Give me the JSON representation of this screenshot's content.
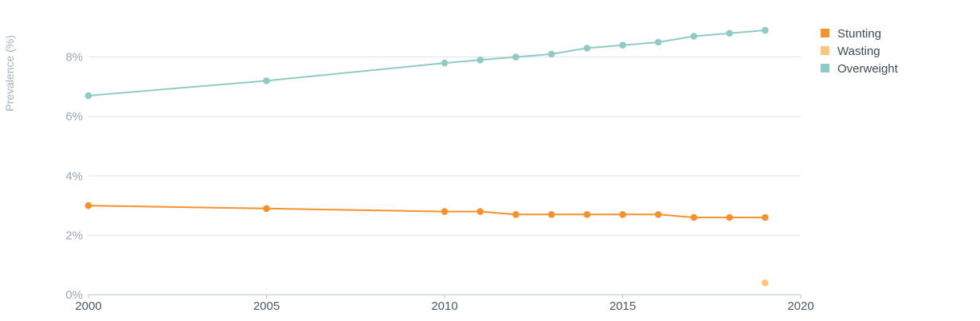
{
  "chart_data": {
    "type": "line",
    "ylabel": "Prevalence (%)",
    "xlim": [
      2000,
      2020
    ],
    "ylim": [
      0,
      9.6
    ],
    "x_ticks": [
      2000,
      2005,
      2010,
      2015,
      2020
    ],
    "y_ticks": [
      {
        "value": 0,
        "label": "0%"
      },
      {
        "value": 2,
        "label": "2%"
      },
      {
        "value": 4,
        "label": "4%"
      },
      {
        "value": 6,
        "label": "6%"
      },
      {
        "value": 8,
        "label": "8%"
      }
    ],
    "grid": true,
    "legend_position": "top-right",
    "series": [
      {
        "name": "Stunting",
        "color": "#f5922d",
        "points": [
          {
            "x": 2000,
            "y": 3.0
          },
          {
            "x": 2005,
            "y": 2.9
          },
          {
            "x": 2010,
            "y": 2.8
          },
          {
            "x": 2011,
            "y": 2.8
          },
          {
            "x": 2012,
            "y": 2.7
          },
          {
            "x": 2013,
            "y": 2.7
          },
          {
            "x": 2014,
            "y": 2.7
          },
          {
            "x": 2015,
            "y": 2.7
          },
          {
            "x": 2016,
            "y": 2.7
          },
          {
            "x": 2017,
            "y": 2.6
          },
          {
            "x": 2018,
            "y": 2.6
          },
          {
            "x": 2019,
            "y": 2.6
          }
        ]
      },
      {
        "name": "Wasting",
        "color": "#fbc57c",
        "points": [
          {
            "x": 2019,
            "y": 0.4
          }
        ]
      },
      {
        "name": "Overweight",
        "color": "#8fcbc6",
        "points": [
          {
            "x": 2000,
            "y": 6.7
          },
          {
            "x": 2005,
            "y": 7.2
          },
          {
            "x": 2010,
            "y": 7.8
          },
          {
            "x": 2011,
            "y": 7.9
          },
          {
            "x": 2012,
            "y": 8.0
          },
          {
            "x": 2013,
            "y": 8.1
          },
          {
            "x": 2014,
            "y": 8.3
          },
          {
            "x": 2015,
            "y": 8.4
          },
          {
            "x": 2016,
            "y": 8.5
          },
          {
            "x": 2017,
            "y": 8.7
          },
          {
            "x": 2018,
            "y": 8.8
          },
          {
            "x": 2019,
            "y": 8.9
          }
        ]
      }
    ]
  }
}
